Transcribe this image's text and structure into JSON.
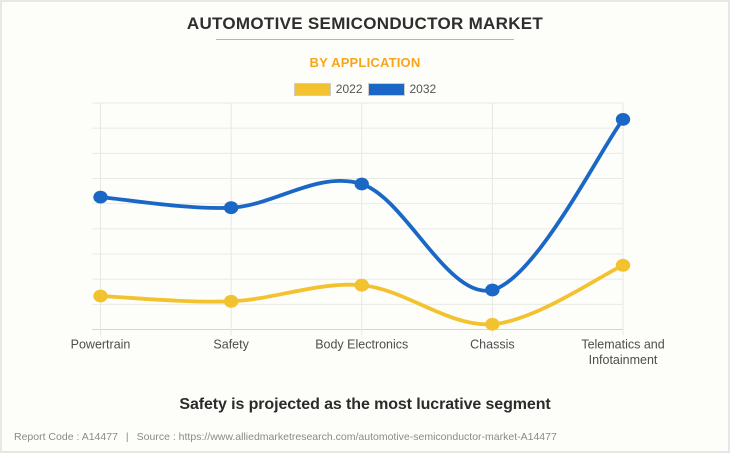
{
  "page": {
    "title": "AUTOMOTIVE SEMICONDUCTOR MARKET",
    "group_label": "BY APPLICATION",
    "accent_color": "#F9A51B",
    "annotation": "Safety is projected as the most lucrative segment",
    "footer": {
      "report_code": "Report Code : A14477",
      "separator": "|",
      "source": "Source : https://www.alliedmarketresearch.com/automotive-semiconductor-market-A14477"
    }
  },
  "chart_data": {
    "type": "line",
    "title": "AUTOMOTIVE SEMICONDUCTOR MARKET",
    "subtitle": "BY APPLICATION",
    "categories": [
      "Powertrain",
      "Safety",
      "Body Electronics",
      "Chassis",
      "Telematics and Infotainment"
    ],
    "category_label_lines": [
      [
        "Powertrain"
      ],
      [
        "Safety"
      ],
      [
        "Body Electronics"
      ],
      [
        "Chassis"
      ],
      [
        "Telematics and",
        "Infotainment"
      ]
    ],
    "series": [
      {
        "name": "2022",
        "color": "#F2C32F",
        "values": [
          1.33,
          1.12,
          1.76,
          0.21,
          2.55
        ]
      },
      {
        "name": "2032",
        "color": "#1B67C6",
        "values": [
          5.26,
          4.84,
          5.78,
          1.57,
          8.35
        ]
      }
    ],
    "curve": "smooth",
    "ylim": [
      0,
      9
    ],
    "y_axis_labels_visible": false,
    "grid": true,
    "legend_position": "top"
  }
}
